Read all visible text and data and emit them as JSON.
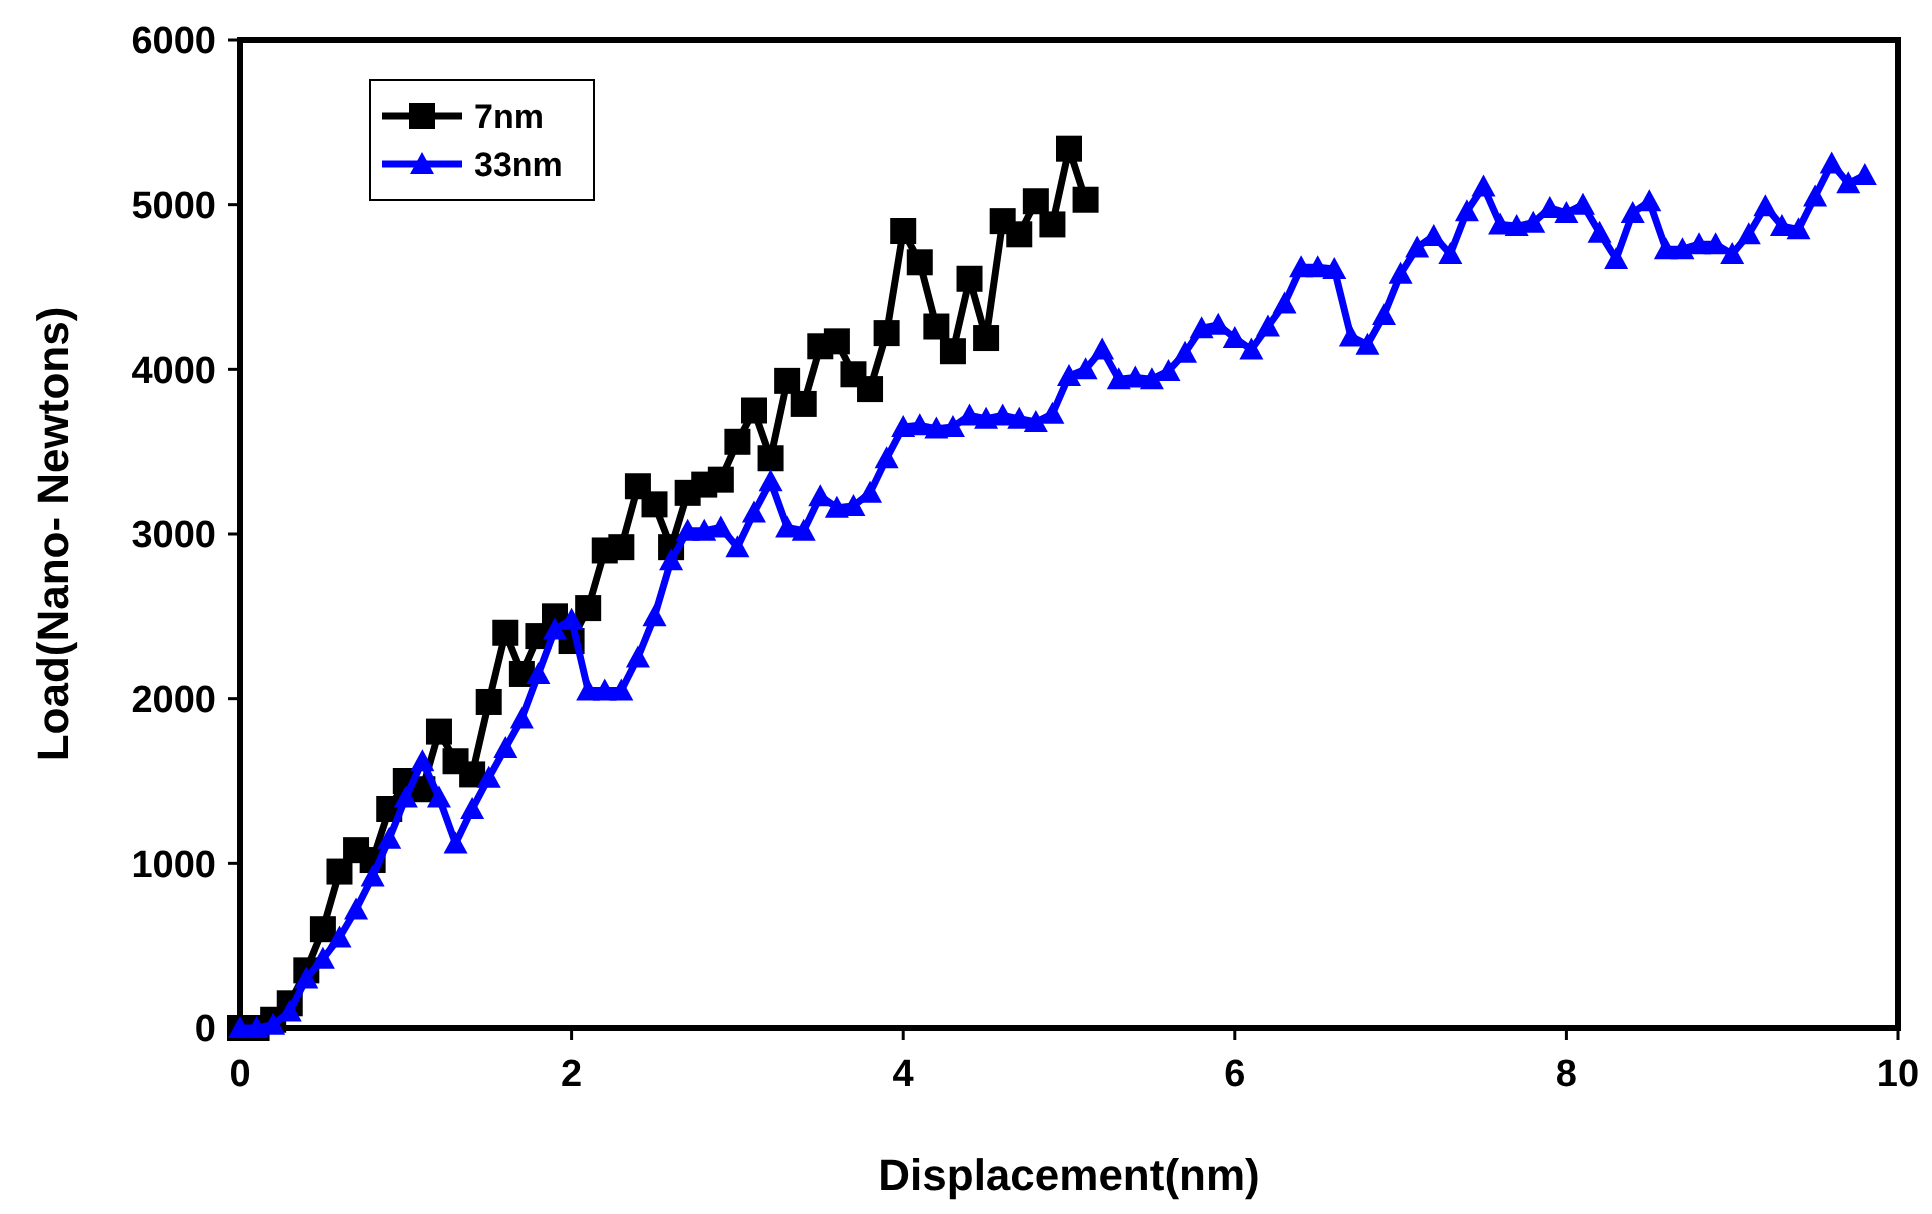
{
  "chart_data": {
    "type": "line",
    "xlabel": "Displacement(nm)",
    "ylabel": "Load(Nano- Newtons)",
    "xlim": [
      0,
      10
    ],
    "xticks": [
      0,
      2,
      4,
      6,
      8,
      10
    ],
    "ylim": [
      0,
      6000
    ],
    "yticks": [
      0,
      1000,
      2000,
      3000,
      4000,
      5000,
      6000
    ],
    "grid": false,
    "legend": "top left",
    "series": [
      {
        "name": "7nm",
        "color": "#000000",
        "marker": "square",
        "x": [
          0,
          0.1,
          0.2,
          0.3,
          0.4,
          0.5,
          0.6,
          0.7,
          0.8,
          0.9,
          1,
          1.1,
          1.2,
          1.3,
          1.4,
          1.5,
          1.6,
          1.7,
          1.8,
          1.9,
          2,
          2.1,
          2.2,
          2.3,
          2.4,
          2.5,
          2.6,
          2.7,
          2.8,
          2.9,
          3,
          3.1,
          3.2,
          3.3,
          3.4,
          3.5,
          3.6,
          3.7,
          3.8,
          3.9,
          4,
          4.1,
          4.2,
          4.3,
          4.4,
          4.5,
          4.6,
          4.7,
          4.8,
          4.9,
          5,
          5.1
        ],
        "values": [
          0,
          0,
          50,
          150,
          350,
          600,
          950,
          1080,
          1020,
          1330,
          1500,
          1450,
          1800,
          1620,
          1540,
          1980,
          2400,
          2150,
          2380,
          2500,
          2350,
          2550,
          2900,
          2920,
          3290,
          3180,
          2920,
          3250,
          3300,
          3330,
          3560,
          3750,
          3460,
          3930,
          3790,
          4140,
          4170,
          3970,
          3880,
          4220,
          4840,
          4650,
          4260,
          4110,
          4550,
          4190,
          4900,
          4820,
          5020,
          4880,
          5340,
          5030
        ]
      },
      {
        "name": "33nm",
        "color": "#0000ff",
        "marker": "triangle",
        "x": [
          0,
          0.1,
          0.2,
          0.3,
          0.4,
          0.5,
          0.6,
          0.7,
          0.8,
          0.9,
          1,
          1.1,
          1.2,
          1.3,
          1.4,
          1.5,
          1.6,
          1.7,
          1.8,
          1.9,
          2,
          2.1,
          2.2,
          2.3,
          2.4,
          2.5,
          2.6,
          2.7,
          2.8,
          2.9,
          3,
          3.1,
          3.2,
          3.3,
          3.4,
          3.5,
          3.6,
          3.7,
          3.8,
          3.9,
          4,
          4.1,
          4.2,
          4.3,
          4.4,
          4.5,
          4.6,
          4.7,
          4.8,
          4.9,
          5,
          5.1,
          5.2,
          5.3,
          5.4,
          5.5,
          5.6,
          5.7,
          5.8,
          5.9,
          6,
          6.1,
          6.2,
          6.3,
          6.4,
          6.5,
          6.6,
          6.7,
          6.8,
          6.9,
          7,
          7.1,
          7.2,
          7.3,
          7.4,
          7.5,
          7.6,
          7.7,
          7.8,
          7.9,
          8,
          8.1,
          8.2,
          8.3,
          8.4,
          8.5,
          8.6,
          8.7,
          8.8,
          8.9,
          9,
          9.1,
          9.2,
          9.3,
          9.4,
          9.5,
          9.6,
          9.7,
          9.8
        ],
        "values": [
          0,
          0,
          20,
          100,
          300,
          420,
          550,
          720,
          920,
          1150,
          1400,
          1620,
          1400,
          1120,
          1330,
          1520,
          1700,
          1880,
          2150,
          2420,
          2480,
          2050,
          2050,
          2050,
          2250,
          2500,
          2840,
          3020,
          3020,
          3040,
          2920,
          3130,
          3320,
          3040,
          3020,
          3230,
          3160,
          3170,
          3250,
          3460,
          3650,
          3660,
          3640,
          3650,
          3720,
          3700,
          3720,
          3700,
          3680,
          3730,
          3960,
          4000,
          4120,
          3940,
          3950,
          3940,
          3990,
          4100,
          4250,
          4270,
          4190,
          4120,
          4260,
          4400,
          4620,
          4620,
          4610,
          4200,
          4150,
          4330,
          4580,
          4740,
          4810,
          4700,
          4960,
          5110,
          4880,
          4870,
          4890,
          4980,
          4950,
          5000,
          4830,
          4670,
          4950,
          5020,
          4730,
          4730,
          4760,
          4760,
          4700,
          4820,
          4990,
          4870,
          4850,
          5050,
          5250,
          5130,
          5180
        ]
      }
    ]
  }
}
